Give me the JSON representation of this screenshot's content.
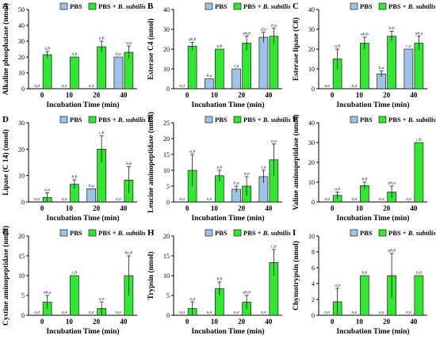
{
  "figure": {
    "series_names": [
      "PBS",
      "PBS + B. subtilis"
    ],
    "colors": {
      "pbs": "#9dc3e6",
      "bs": "#33e633",
      "edge": "#000000"
    }
  },
  "chart_data": [
    {
      "type": "bar",
      "panel": "A",
      "ylabel": "Alkaline phosphatase (nmol)",
      "xlabel": "Incubation Time (min)",
      "categories": [
        "0",
        "10",
        "20",
        "40"
      ],
      "ylim": [
        0,
        50
      ],
      "yticks": [
        0,
        10,
        20,
        30,
        40,
        50
      ],
      "series": [
        {
          "name": "PBS",
          "values": [
            0,
            0,
            0,
            20
          ],
          "errors": [
            0,
            0,
            0,
            0
          ],
          "labels": [
            "a,a",
            "a,a",
            "a,a",
            "b,a"
          ]
        },
        {
          "name": "PBS + B. subtilis",
          "values": [
            21.5,
            20,
            26.5,
            23
          ],
          "errors": [
            2,
            0,
            3.5,
            4
          ],
          "labels": [
            "a,b",
            "a,b",
            "a,b",
            "a,a"
          ]
        }
      ]
    },
    {
      "type": "bar",
      "panel": "B",
      "ylabel": "Esterase C4 (nmol)",
      "xlabel": "Incubation Time (min)",
      "categories": [
        "0",
        "10",
        "20",
        "40"
      ],
      "ylim": [
        0,
        40
      ],
      "yticks": [
        0,
        10,
        20,
        30,
        40
      ],
      "series": [
        {
          "name": "PBS",
          "values": [
            0,
            5,
            10,
            26
          ],
          "errors": [
            0,
            0,
            0,
            2.5
          ],
          "labels": [
            "a,a",
            "b,a",
            "c,a",
            "d,a"
          ]
        },
        {
          "name": "PBS + B. subtilis",
          "values": [
            21.5,
            20,
            23,
            26.5
          ],
          "errors": [
            2,
            0,
            3.5,
            4
          ],
          "labels": [
            "ab,b",
            "a,b",
            "ab,b",
            "b,a"
          ]
        }
      ]
    },
    {
      "type": "bar",
      "panel": "C",
      "ylabel": "Esterase lipase (C8)",
      "xlabel": "Incubation Time (min)",
      "categories": [
        "0",
        "10",
        "20",
        "40"
      ],
      "ylim": [
        0,
        40
      ],
      "yticks": [
        0,
        10,
        20,
        30,
        40
      ],
      "series": [
        {
          "name": "PBS",
          "values": [
            0,
            0,
            7.5,
            20
          ],
          "errors": [
            0,
            0,
            1.5,
            0
          ],
          "labels": [
            "a,a",
            "a,a",
            "b,a",
            "c,a"
          ]
        },
        {
          "name": "PBS + B. subtilis",
          "values": [
            15,
            23,
            26.5,
            23
          ],
          "errors": [
            5,
            3,
            2.5,
            3.5
          ],
          "labels": [
            "a,b",
            "ab,b",
            "b,b",
            "ab,a"
          ]
        }
      ]
    },
    {
      "type": "bar",
      "panel": "D",
      "ylabel": "Lipase (C 14) (nmol)",
      "xlabel": "Incubation Time (min)",
      "categories": [
        "0",
        "10",
        "20",
        "40"
      ],
      "ylim": [
        0,
        30
      ],
      "yticks": [
        0,
        10,
        20,
        30
      ],
      "series": [
        {
          "name": "PBS",
          "values": [
            0,
            0,
            5,
            0
          ],
          "errors": [
            0,
            0,
            0,
            0
          ],
          "labels": [
            "a,a",
            "a,a",
            "b,a",
            "a,a"
          ]
        },
        {
          "name": "PBS + B. subtilis",
          "values": [
            1.7,
            6.7,
            20,
            8.3
          ],
          "errors": [
            1.7,
            1.7,
            5,
            5
          ],
          "labels": [
            "a,a",
            "b,b",
            "c,b",
            "b,b"
          ]
        }
      ]
    },
    {
      "type": "bar",
      "panel": "E",
      "ylabel": "Leucine aminopeptidase (nmol)",
      "xlabel": "Incubation Time (min)",
      "categories": [
        "0",
        "10",
        "20",
        "40"
      ],
      "ylim": [
        0,
        25
      ],
      "yticks": [
        0,
        5,
        10,
        15,
        20,
        25
      ],
      "series": [
        {
          "name": "PBS",
          "values": [
            0,
            0,
            4,
            8
          ],
          "errors": [
            0,
            0,
            1,
            2
          ],
          "labels": [
            "a,a",
            "a,a",
            "b,a",
            "c,a"
          ]
        },
        {
          "name": "PBS + B. subtilis",
          "values": [
            10,
            8.3,
            5,
            13.3
          ],
          "errors": [
            5,
            1.7,
            3,
            5
          ],
          "labels": [
            "a,b",
            "a,b",
            "a,a",
            "a,a"
          ]
        }
      ]
    },
    {
      "type": "bar",
      "panel": "F",
      "ylabel": "Valine aminopeptidase (nmol)",
      "xlabel": "Incubation Time (min)",
      "categories": [
        "0",
        "10",
        "20",
        "40"
      ],
      "ylim": [
        0,
        40
      ],
      "yticks": [
        0,
        10,
        20,
        30,
        40
      ],
      "series": [
        {
          "name": "PBS",
          "values": [
            0,
            0,
            0,
            0
          ],
          "errors": [
            0,
            0,
            0,
            0
          ],
          "labels": [
            "a,a",
            "a,a",
            "a,a",
            "a,a"
          ]
        },
        {
          "name": "PBS + B. subtilis",
          "values": [
            3.3,
            8.3,
            5,
            30
          ],
          "errors": [
            1.7,
            1.7,
            3,
            0
          ],
          "labels": [
            "a,b",
            "b,b",
            "ab,a",
            "c,b"
          ]
        }
      ]
    },
    {
      "type": "bar",
      "panel": "G",
      "ylabel": "Cystine aminopeptidase (nmol)",
      "xlabel": "Incubation Time (min)",
      "categories": [
        "0",
        "10",
        "20",
        "40"
      ],
      "ylim": [
        0,
        20
      ],
      "yticks": [
        0,
        5,
        10,
        15,
        20
      ],
      "series": [
        {
          "name": "PBS",
          "values": [
            0,
            0,
            0,
            0
          ],
          "errors": [
            0,
            0,
            0,
            0
          ],
          "labels": [
            "a,a",
            "a,a",
            "a,a",
            "a,a"
          ]
        },
        {
          "name": "PBS + B. subtilis",
          "values": [
            3.3,
            10,
            1.7,
            10
          ],
          "errors": [
            1.7,
            0,
            1.7,
            5
          ],
          "labels": [
            "ab,a",
            "c,b",
            "a,a",
            "bc,b"
          ]
        }
      ]
    },
    {
      "type": "bar",
      "panel": "H",
      "ylabel": "Trypsin (nmol)",
      "xlabel": "Incubation Time (min)",
      "categories": [
        "0",
        "10",
        "20",
        "40"
      ],
      "ylim": [
        0,
        20
      ],
      "yticks": [
        0,
        5,
        10,
        15,
        20
      ],
      "series": [
        {
          "name": "PBS",
          "values": [
            0,
            0,
            0,
            0
          ],
          "errors": [
            0,
            0,
            0,
            0
          ],
          "labels": [
            "a,a",
            "a,a",
            "a,a",
            "a,a"
          ]
        },
        {
          "name": "PBS + B. subtilis",
          "values": [
            1.7,
            6.7,
            3.3,
            13.3
          ],
          "errors": [
            1.7,
            1.7,
            1.7,
            3.3
          ],
          "labels": [
            "a,a",
            "b,b",
            "ab,b",
            "c,b"
          ]
        }
      ]
    },
    {
      "type": "bar",
      "panel": "I",
      "ylabel": "Chymotrypsin (nmol)",
      "xlabel": "Incubation Time (min)",
      "categories": [
        "0",
        "10",
        "20",
        "40"
      ],
      "ylim": [
        0,
        10
      ],
      "yticks": [
        0,
        2,
        4,
        6,
        8,
        10
      ],
      "series": [
        {
          "name": "PBS",
          "values": [
            0,
            0,
            0,
            0
          ],
          "errors": [
            0,
            0,
            0,
            0
          ],
          "labels": [
            "a,a",
            "a,a",
            "a,a",
            "a,a"
          ]
        },
        {
          "name": "PBS + B. subtilis",
          "values": [
            1.7,
            5,
            5,
            5
          ],
          "errors": [
            1.7,
            0,
            2.8,
            0
          ],
          "labels": [
            "a,a",
            "b,b",
            "ab,b",
            "b,b"
          ]
        }
      ]
    }
  ]
}
